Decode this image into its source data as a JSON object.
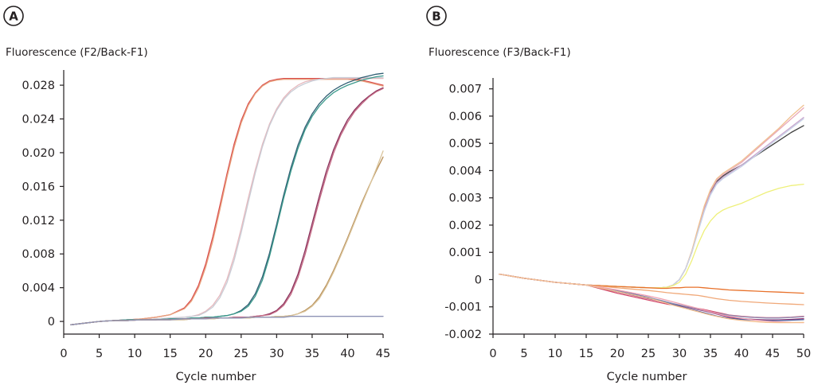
{
  "chart_data": [
    {
      "panel_label": "A",
      "type": "line",
      "title": "",
      "ylabel": "Fluorescence (F2/Back-F1)",
      "xlabel": "Cycle number",
      "xlim": [
        0,
        45
      ],
      "ylim": [
        -0.0015,
        0.0298
      ],
      "x_ticks": [
        "0",
        "5",
        "10",
        "15",
        "20",
        "25",
        "30",
        "35",
        "40",
        "45"
      ],
      "y_ticks": [
        "0",
        "0.004",
        "0.008",
        "0.012",
        "0.016",
        "0.020",
        "0.024",
        "0.028"
      ],
      "grid": false,
      "legend": "none",
      "x": [
        1,
        3,
        5,
        7,
        9,
        11,
        13,
        15,
        17,
        18,
        19,
        20,
        21,
        22,
        23,
        24,
        25,
        26,
        27,
        28,
        29,
        30,
        31,
        32,
        33,
        34,
        35,
        36,
        37,
        38,
        39,
        40,
        41,
        42,
        43,
        44,
        45
      ],
      "series": [
        {
          "color": "#d94a4a",
          "values": [
            -0.0004,
            -0.0002,
            0.0,
            0.0001,
            0.0002,
            0.0003,
            0.0005,
            0.0008,
            0.0016,
            0.0026,
            0.0043,
            0.0068,
            0.01,
            0.0137,
            0.0175,
            0.021,
            0.0238,
            0.0258,
            0.0271,
            0.028,
            0.0285,
            0.0287,
            0.0288,
            0.0288,
            0.0288,
            0.0288,
            0.0288,
            0.0288,
            0.0288,
            0.0288,
            0.0288,
            0.0288,
            0.0287,
            0.0286,
            0.0284,
            0.0282,
            0.028
          ]
        },
        {
          "color": "#e8a27e",
          "values": [
            -0.0004,
            -0.0002,
            0.0,
            0.0001,
            0.0002,
            0.0003,
            0.0005,
            0.0008,
            0.0015,
            0.0024,
            0.004,
            0.0064,
            0.0095,
            0.0132,
            0.0171,
            0.0206,
            0.0235,
            0.0256,
            0.027,
            0.0279,
            0.0284,
            0.0286,
            0.0287,
            0.0287,
            0.0287,
            0.0287,
            0.0287,
            0.0287,
            0.0287,
            0.0287,
            0.0287,
            0.0287,
            0.0286,
            0.0285,
            0.0283,
            0.0281,
            0.0279
          ]
        },
        {
          "color": "#e6b8bd",
          "values": [
            -0.0004,
            -0.0002,
            0.0,
            0.0001,
            0.0002,
            0.0002,
            0.0003,
            0.0004,
            0.0005,
            0.0006,
            0.0008,
            0.0012,
            0.0019,
            0.0031,
            0.005,
            0.0077,
            0.011,
            0.0146,
            0.018,
            0.021,
            0.0234,
            0.0252,
            0.0265,
            0.0274,
            0.028,
            0.0284,
            0.0286,
            0.0287,
            0.0288,
            0.0288,
            0.0288,
            0.0288,
            0.0288,
            0.0288,
            0.0288,
            0.0288,
            0.0288
          ]
        },
        {
          "color": "#c9cdd6",
          "values": [
            -0.0004,
            -0.0002,
            0.0,
            0.0001,
            0.0002,
            0.0002,
            0.0003,
            0.0004,
            0.0005,
            0.0006,
            0.0007,
            0.0011,
            0.0017,
            0.0028,
            0.0046,
            0.0072,
            0.0105,
            0.0141,
            0.0176,
            0.0207,
            0.0232,
            0.025,
            0.0263,
            0.0272,
            0.0278,
            0.0282,
            0.0285,
            0.0287,
            0.0288,
            0.0289,
            0.0289,
            0.0289,
            0.0289,
            0.0289,
            0.0289,
            0.0289,
            0.0289
          ]
        },
        {
          "color": "#2f5e73",
          "values": [
            -0.0004,
            -0.0002,
            0.0,
            0.0001,
            0.0002,
            0.0002,
            0.0002,
            0.0003,
            0.0003,
            0.0004,
            0.0004,
            0.0005,
            0.0005,
            0.0006,
            0.0007,
            0.0009,
            0.0013,
            0.002,
            0.0033,
            0.0053,
            0.0081,
            0.0115,
            0.015,
            0.0182,
            0.0209,
            0.023,
            0.0246,
            0.0258,
            0.0267,
            0.0274,
            0.0279,
            0.0283,
            0.0286,
            0.0289,
            0.0291,
            0.0293,
            0.0294
          ]
        },
        {
          "color": "#3c9a8c",
          "values": [
            -0.0004,
            -0.0002,
            0.0,
            0.0001,
            0.0002,
            0.0002,
            0.0002,
            0.0003,
            0.0003,
            0.0004,
            0.0004,
            0.0005,
            0.0005,
            0.0006,
            0.0007,
            0.0009,
            0.0012,
            0.0018,
            0.003,
            0.0049,
            0.0077,
            0.0111,
            0.0146,
            0.0178,
            0.0205,
            0.0227,
            0.0243,
            0.0255,
            0.0264,
            0.0271,
            0.0276,
            0.028,
            0.0283,
            0.0286,
            0.0288,
            0.029,
            0.0291
          ]
        },
        {
          "color": "#8a2f5a",
          "values": [
            -0.0004,
            -0.0002,
            0.0,
            0.0001,
            0.0001,
            0.0002,
            0.0002,
            0.0002,
            0.0003,
            0.0003,
            0.0003,
            0.0004,
            0.0004,
            0.0004,
            0.0004,
            0.0005,
            0.0005,
            0.0005,
            0.0006,
            0.0007,
            0.0009,
            0.0013,
            0.0021,
            0.0035,
            0.0056,
            0.0084,
            0.0116,
            0.0148,
            0.0178,
            0.0203,
            0.0223,
            0.0239,
            0.0251,
            0.026,
            0.0267,
            0.0273,
            0.0277
          ]
        },
        {
          "color": "#c36a84",
          "values": [
            -0.0004,
            -0.0002,
            0.0,
            0.0001,
            0.0001,
            0.0002,
            0.0002,
            0.0002,
            0.0003,
            0.0003,
            0.0003,
            0.0004,
            0.0004,
            0.0004,
            0.0004,
            0.0005,
            0.0005,
            0.0005,
            0.0006,
            0.0007,
            0.0008,
            0.0012,
            0.0019,
            0.0032,
            0.0052,
            0.0079,
            0.0111,
            0.0143,
            0.0173,
            0.0199,
            0.022,
            0.0236,
            0.0249,
            0.0258,
            0.0266,
            0.0272,
            0.0276
          ]
        },
        {
          "color": "#b88f58",
          "values": [
            -0.0004,
            -0.0002,
            0.0,
            0.0001,
            0.0001,
            0.0002,
            0.0002,
            0.0002,
            0.0002,
            0.0003,
            0.0003,
            0.0003,
            0.0003,
            0.0004,
            0.0004,
            0.0004,
            0.0004,
            0.0004,
            0.0005,
            0.0005,
            0.0005,
            0.0006,
            0.0006,
            0.0007,
            0.0009,
            0.0013,
            0.0019,
            0.0029,
            0.0043,
            0.006,
            0.0079,
            0.0099,
            0.012,
            0.0141,
            0.016,
            0.0178,
            0.0195
          ]
        },
        {
          "color": "#d9c39a",
          "values": [
            -0.0004,
            -0.0002,
            0.0,
            0.0001,
            0.0001,
            0.0002,
            0.0002,
            0.0002,
            0.0002,
            0.0003,
            0.0003,
            0.0003,
            0.0003,
            0.0004,
            0.0004,
            0.0004,
            0.0004,
            0.0004,
            0.0005,
            0.0005,
            0.0005,
            0.0006,
            0.0006,
            0.0007,
            0.0009,
            0.0012,
            0.0018,
            0.0027,
            0.0041,
            0.0058,
            0.0077,
            0.0097,
            0.0118,
            0.0139,
            0.0159,
            0.018,
            0.0202
          ]
        },
        {
          "color": "#8d92b5",
          "values": [
            -0.0004,
            -0.0002,
            0.0,
            0.0001,
            0.0001,
            0.0002,
            0.0002,
            0.0002,
            0.0003,
            0.0003,
            0.0003,
            0.0003,
            0.0004,
            0.0004,
            0.0004,
            0.0004,
            0.0004,
            0.0005,
            0.0005,
            0.0005,
            0.0005,
            0.0005,
            0.0005,
            0.0006,
            0.0006,
            0.0006,
            0.0006,
            0.0006,
            0.0006,
            0.0006,
            0.0006,
            0.0006,
            0.0006,
            0.0006,
            0.0006,
            0.0006,
            0.0006
          ]
        }
      ]
    },
    {
      "panel_label": "B",
      "type": "line",
      "title": "",
      "ylabel": "Fluorescence (F3/Back-F1)",
      "xlabel": "Cycle number",
      "xlim": [
        0,
        50
      ],
      "ylim": [
        -0.002,
        0.0074
      ],
      "x_ticks": [
        "0",
        "5",
        "10",
        "15",
        "20",
        "25",
        "30",
        "35",
        "40",
        "45",
        "50"
      ],
      "y_ticks": [
        "-0.002",
        "-0.001",
        "0",
        "0.001",
        "0.002",
        "0.003",
        "0.004",
        "0.005",
        "0.006",
        "0.007"
      ],
      "grid": false,
      "legend": "none",
      "x": [
        1,
        5,
        10,
        15,
        20,
        25,
        27,
        28,
        29,
        30,
        31,
        32,
        33,
        34,
        35,
        36,
        37,
        38,
        40,
        42,
        44,
        46,
        48,
        50
      ],
      "series": [
        {
          "color": "#404040",
          "values": [
            0.0002,
            5e-05,
            -0.0001,
            -0.0002,
            -0.00025,
            -0.0003,
            -0.0003,
            -0.00028,
            -0.0002,
            0.0,
            0.0004,
            0.001,
            0.0018,
            0.0026,
            0.0032,
            0.0036,
            0.0038,
            0.00395,
            0.0042,
            0.0045,
            0.0048,
            0.0051,
            0.0054,
            0.00565
          ]
        },
        {
          "color": "#e9a8b8",
          "values": [
            0.0002,
            5e-05,
            -0.0001,
            -0.0002,
            -0.00025,
            -0.0003,
            -0.0003,
            -0.00028,
            -0.0002,
            0.0,
            0.0004,
            0.00105,
            0.00185,
            0.00265,
            0.00325,
            0.00365,
            0.00385,
            0.004,
            0.0043,
            0.0047,
            0.0051,
            0.0055,
            0.0059,
            0.0063
          ]
        },
        {
          "color": "#c9a8cf",
          "values": [
            0.0002,
            5e-05,
            -0.0001,
            -0.0002,
            -0.00025,
            -0.0003,
            -0.0003,
            -0.00028,
            -0.0002,
            0.0,
            0.0004,
            0.001,
            0.0018,
            0.00255,
            0.00315,
            0.00355,
            0.00375,
            0.0039,
            0.0042,
            0.00455,
            0.0049,
            0.00525,
            0.0056,
            0.00595
          ]
        },
        {
          "color": "#f0c090",
          "values": [
            0.0002,
            5e-05,
            -0.0001,
            -0.0002,
            -0.00025,
            -0.0003,
            -0.0003,
            -0.00028,
            -0.0002,
            0.0,
            0.0004,
            0.00105,
            0.0019,
            0.0027,
            0.0033,
            0.0037,
            0.0039,
            0.00405,
            0.00435,
            0.00475,
            0.00515,
            0.00555,
            0.006,
            0.0064
          ]
        },
        {
          "color": "#c8d4e8",
          "values": [
            0.0002,
            5e-05,
            -0.0001,
            -0.0002,
            -0.00025,
            -0.0003,
            -0.0003,
            -0.00028,
            -0.0002,
            0.0,
            0.0004,
            0.001,
            0.00175,
            0.0025,
            0.0031,
            0.0035,
            0.0037,
            0.00385,
            0.00415,
            0.0045,
            0.00485,
            0.0052,
            0.00555,
            0.0059
          ]
        },
        {
          "color": "#eef07a",
          "values": [
            0.0002,
            5e-05,
            -0.0001,
            -0.0002,
            -0.00025,
            -0.0003,
            -0.0003,
            -0.00028,
            -0.00022,
            -0.0001,
            0.0002,
            0.0007,
            0.0013,
            0.0018,
            0.00215,
            0.0024,
            0.00255,
            0.00265,
            0.0028,
            0.003,
            0.0032,
            0.00335,
            0.00345,
            0.0035
          ]
        },
        {
          "color": "#e8712a",
          "values": [
            0.0002,
            5e-05,
            -0.0001,
            -0.0002,
            -0.00025,
            -0.0003,
            -0.00032,
            -0.00032,
            -0.0003,
            -0.0003,
            -0.00028,
            -0.00028,
            -0.00028,
            -0.0003,
            -0.00032,
            -0.00034,
            -0.00036,
            -0.00038,
            -0.0004,
            -0.00042,
            -0.00044,
            -0.00046,
            -0.00048,
            -0.0005
          ]
        },
        {
          "color": "#f0a878",
          "values": [
            0.0002,
            5e-05,
            -0.0001,
            -0.0002,
            -0.0003,
            -0.0004,
            -0.00045,
            -0.00048,
            -0.0005,
            -0.00052,
            -0.00054,
            -0.00056,
            -0.00058,
            -0.00062,
            -0.00066,
            -0.0007,
            -0.00073,
            -0.00076,
            -0.0008,
            -0.00083,
            -0.00086,
            -0.00088,
            -0.0009,
            -0.00092
          ]
        },
        {
          "color": "#d44a6a",
          "values": [
            0.0002,
            5e-05,
            -0.0001,
            -0.0002,
            -0.0005,
            -0.00075,
            -0.00085,
            -0.0009,
            -0.00093,
            -0.00096,
            -0.00099,
            -0.00102,
            -0.00106,
            -0.0011,
            -0.00115,
            -0.0012,
            -0.00125,
            -0.0013,
            -0.00135,
            -0.00138,
            -0.0014,
            -0.0014,
            -0.00138,
            -0.00135
          ]
        },
        {
          "color": "#9a3a78",
          "values": [
            0.0002,
            5e-05,
            -0.0001,
            -0.0002,
            -0.00045,
            -0.0007,
            -0.0008,
            -0.00085,
            -0.0009,
            -0.00095,
            -0.001,
            -0.00105,
            -0.0011,
            -0.00115,
            -0.0012,
            -0.00126,
            -0.00132,
            -0.00138,
            -0.00143,
            -0.00146,
            -0.00148,
            -0.00148,
            -0.00146,
            -0.00143
          ]
        },
        {
          "color": "#4a5d9a",
          "values": [
            0.0002,
            5e-05,
            -0.0001,
            -0.0002,
            -0.0004,
            -0.00065,
            -0.00078,
            -0.00085,
            -0.00092,
            -0.00098,
            -0.00104,
            -0.0011,
            -0.00116,
            -0.00122,
            -0.00128,
            -0.00134,
            -0.00138,
            -0.00142,
            -0.00146,
            -0.00148,
            -0.0015,
            -0.0015,
            -0.00149,
            -0.00147
          ]
        },
        {
          "color": "#8a8fb5",
          "values": [
            0.0002,
            5e-05,
            -0.0001,
            -0.0002,
            -0.00042,
            -0.00066,
            -0.00076,
            -0.00082,
            -0.00088,
            -0.00093,
            -0.00098,
            -0.00103,
            -0.00108,
            -0.00113,
            -0.00118,
            -0.00123,
            -0.00127,
            -0.00131,
            -0.00136,
            -0.00139,
            -0.00141,
            -0.00141,
            -0.00139,
            -0.00136
          ]
        },
        {
          "color": "#f0a0b0",
          "values": [
            0.0002,
            5e-05,
            -0.0001,
            -0.0002,
            -0.00038,
            -0.0006,
            -0.0007,
            -0.00076,
            -0.00082,
            -0.00088,
            -0.00094,
            -0.001,
            -0.00106,
            -0.00112,
            -0.00118,
            -0.00124,
            -0.0013,
            -0.00135,
            -0.00142,
            -0.00148,
            -0.00152,
            -0.00155,
            -0.00157,
            -0.00158
          ]
        },
        {
          "color": "#f5c090",
          "values": [
            0.0002,
            5e-05,
            -0.0001,
            -0.0002,
            -0.00044,
            -0.00068,
            -0.0008,
            -0.00087,
            -0.00094,
            -0.001,
            -0.00106,
            -0.00112,
            -0.00118,
            -0.00124,
            -0.0013,
            -0.00135,
            -0.0014,
            -0.00144,
            -0.0015,
            -0.00154,
            -0.00157,
            -0.00158,
            -0.00158,
            -0.00157
          ]
        }
      ]
    }
  ]
}
